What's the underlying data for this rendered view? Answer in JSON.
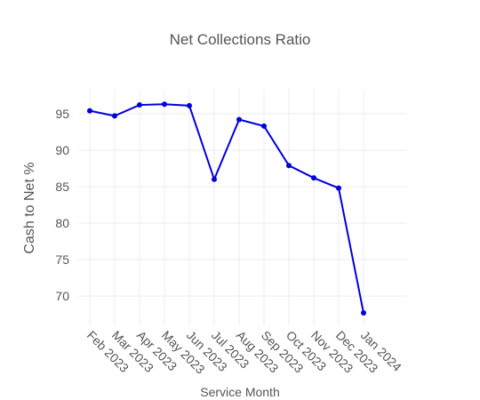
{
  "chart_data": {
    "type": "line",
    "title": "Net Collections Ratio",
    "x_label": "Service Month",
    "y_label": "Cash to Net %",
    "categories": [
      "Feb 2023",
      "Mar 2023",
      "Apr 2023",
      "May 2023",
      "Jun 2023",
      "Jul 2023",
      "Aug 2023",
      "Sep 2023",
      "Oct 2023",
      "Nov 2023",
      "Dec 2023",
      "Jan 2024"
    ],
    "series": [
      {
        "color": "#0000dd",
        "values": [
          95.4,
          94.7,
          96.2,
          96.3,
          96.1,
          86.0,
          94.2,
          93.3,
          87.9,
          86.2,
          84.8,
          67.7
        ]
      }
    ],
    "ylim": [
      66,
      98.4
    ],
    "yticks": [
      70,
      75,
      80,
      85,
      90,
      95
    ],
    "grid": true
  }
}
